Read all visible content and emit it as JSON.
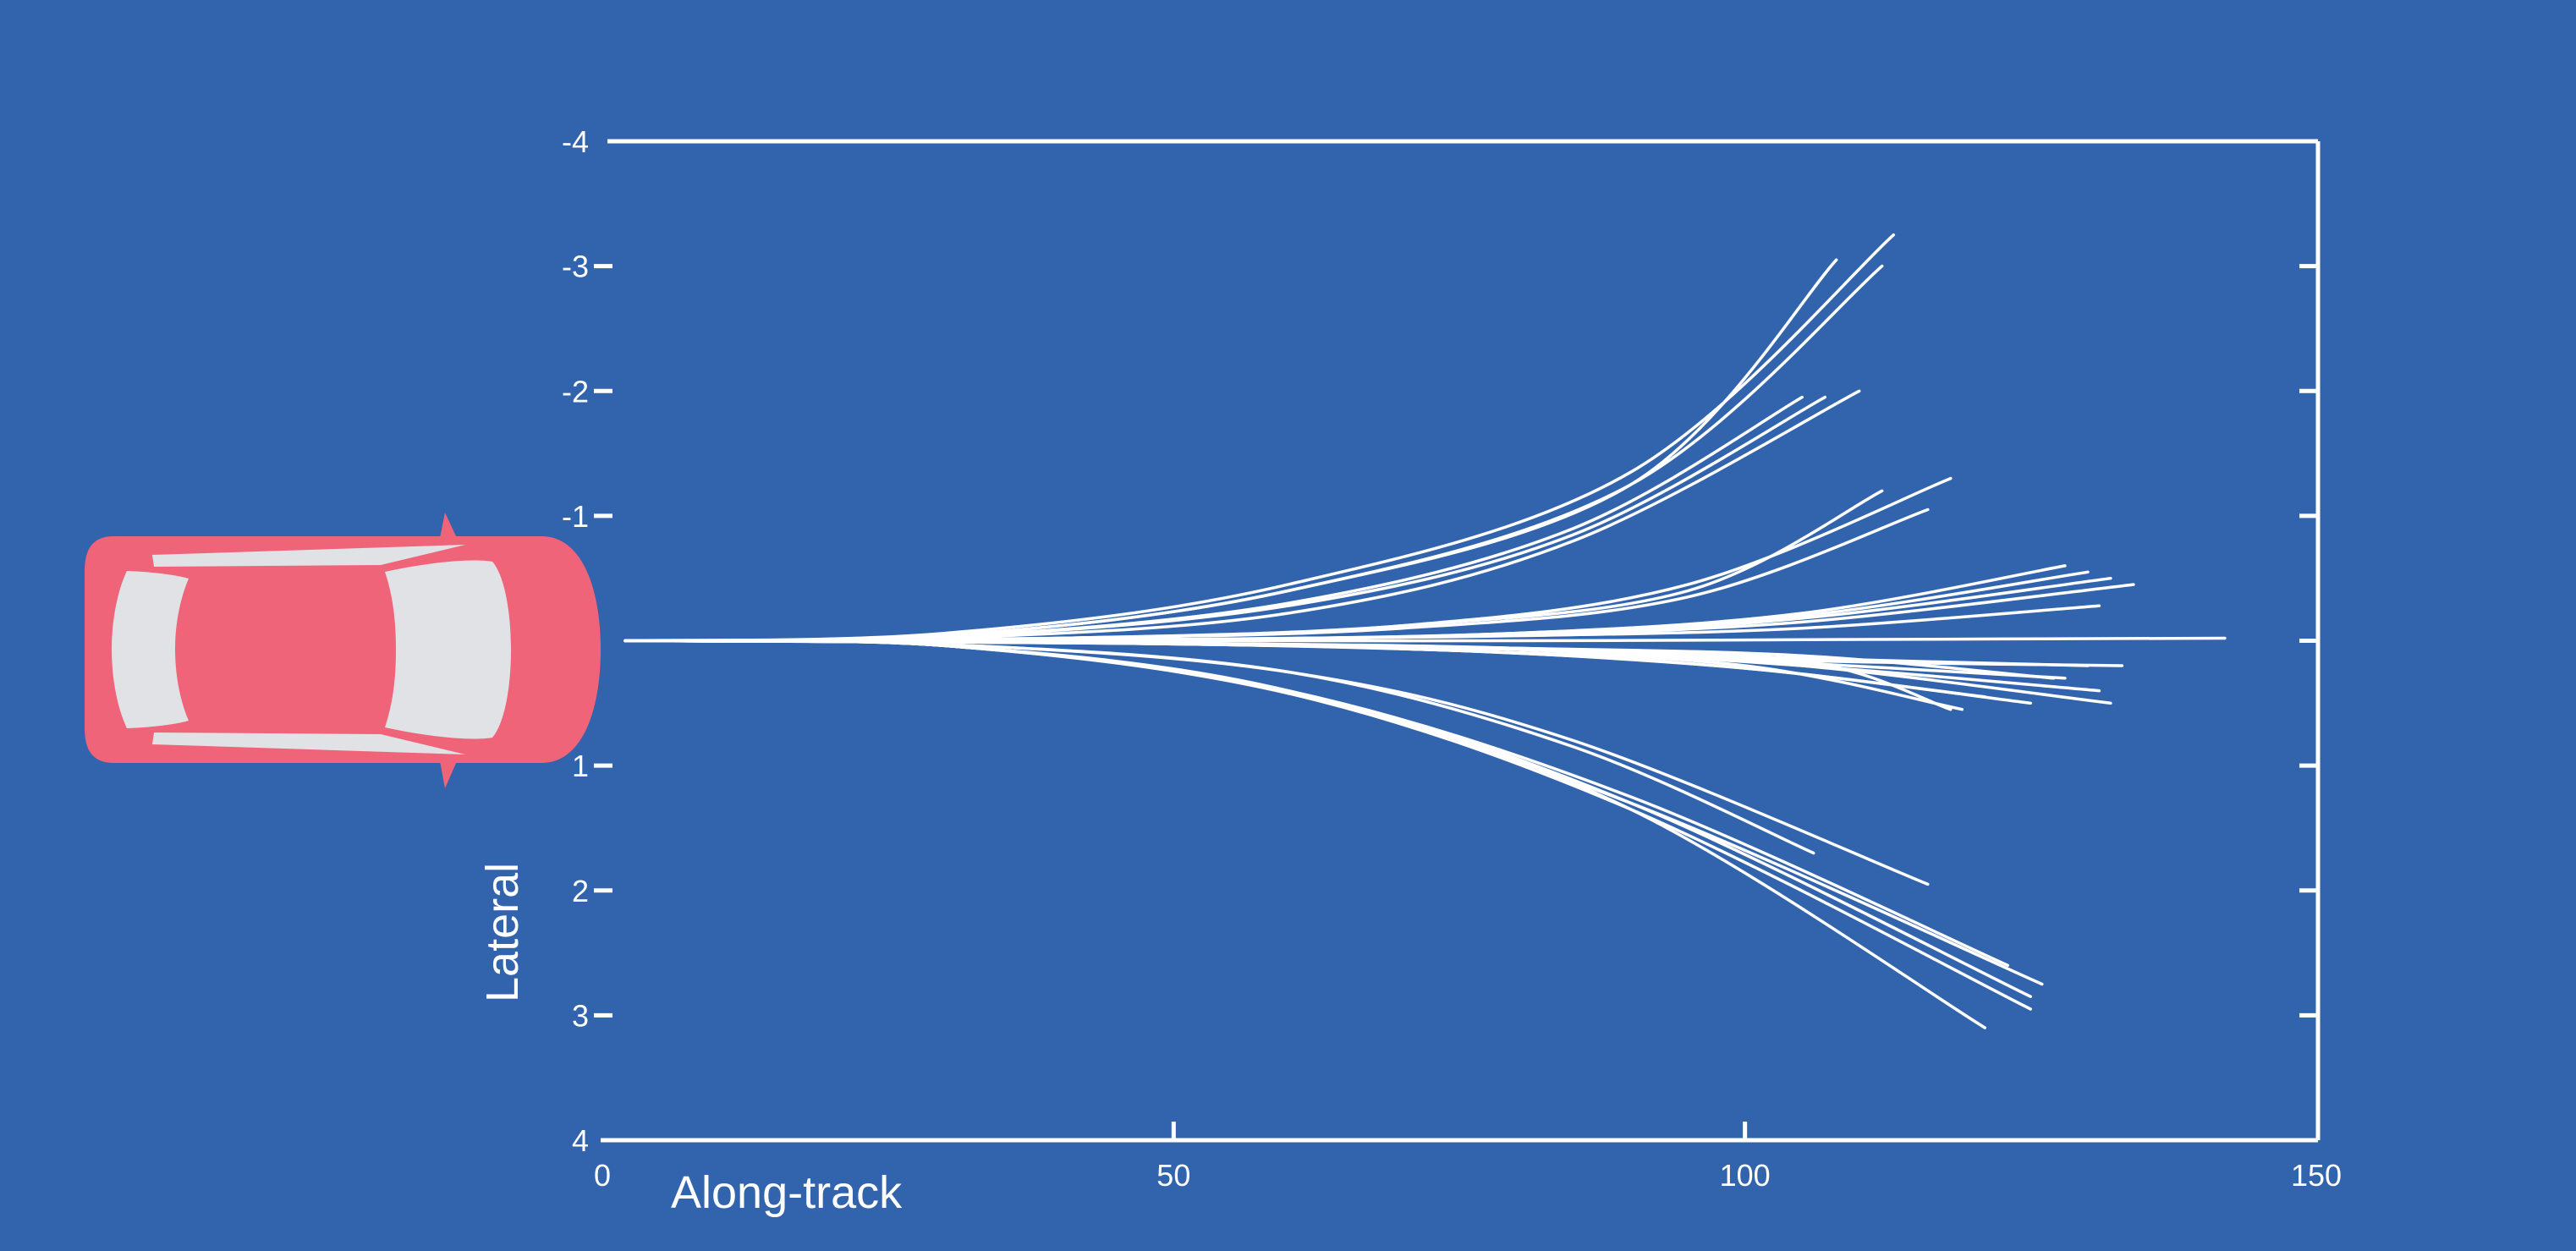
{
  "colors": {
    "background": "#3264ad",
    "foreground": "#ffffff",
    "car_body": "#f0647a",
    "car_glass": "#e1e2e6"
  },
  "vehicle": {
    "icon": "car-top-view-icon"
  },
  "chart_data": {
    "type": "line",
    "xlabel": "Along-track",
    "ylabel": "Lateral",
    "xlim": [
      0,
      150
    ],
    "ylim": [
      -4,
      4
    ],
    "y_inverted": true,
    "x_ticks": [
      "0",
      "50",
      "100",
      "150"
    ],
    "y_ticks": [
      "-4",
      "-3",
      "-2",
      "-1",
      "1",
      "2",
      "3",
      "4"
    ],
    "grid": false,
    "series": [
      {
        "x": [
          2,
          30,
          60,
          90,
          108
        ],
        "y": [
          0.0,
          -0.04,
          -0.4,
          -1.25,
          -3.05
        ]
      },
      {
        "x": [
          2,
          30,
          60,
          90,
          113
        ],
        "y": [
          0.0,
          -0.06,
          -0.45,
          -1.35,
          -3.25
        ]
      },
      {
        "x": [
          2,
          30,
          60,
          90,
          112
        ],
        "y": [
          0.0,
          -0.04,
          -0.4,
          -1.25,
          -3.0
        ]
      },
      {
        "x": [
          2,
          30,
          60,
          85,
          105
        ],
        "y": [
          0.0,
          -0.03,
          -0.3,
          -0.9,
          -1.95
        ]
      },
      {
        "x": [
          2,
          30,
          60,
          85,
          107
        ],
        "y": [
          0.0,
          -0.03,
          -0.28,
          -0.85,
          -1.95
        ]
      },
      {
        "x": [
          2,
          30,
          60,
          85,
          110
        ],
        "y": [
          0.0,
          -0.02,
          -0.22,
          -0.8,
          -2.0
        ]
      },
      {
        "x": [
          2,
          40,
          70,
          95,
          118
        ],
        "y": [
          0.0,
          -0.02,
          -0.12,
          -0.45,
          -1.3
        ]
      },
      {
        "x": [
          2,
          40,
          70,
          95,
          112
        ],
        "y": [
          0.0,
          -0.02,
          -0.12,
          -0.4,
          -1.2
        ]
      },
      {
        "x": [
          2,
          40,
          70,
          95,
          116
        ],
        "y": [
          0.0,
          -0.02,
          -0.1,
          -0.35,
          -1.05
        ]
      },
      {
        "x": [
          2,
          50,
          80,
          105,
          128
        ],
        "y": [
          0.0,
          -0.01,
          -0.06,
          -0.22,
          -0.6
        ]
      },
      {
        "x": [
          2,
          50,
          80,
          105,
          130
        ],
        "y": [
          0.0,
          -0.01,
          -0.06,
          -0.2,
          -0.55
        ]
      },
      {
        "x": [
          2,
          50,
          80,
          105,
          132
        ],
        "y": [
          0.0,
          -0.01,
          -0.05,
          -0.18,
          -0.5
        ]
      },
      {
        "x": [
          2,
          50,
          80,
          105,
          134
        ],
        "y": [
          0.0,
          -0.01,
          -0.05,
          -0.15,
          -0.45
        ]
      },
      {
        "x": [
          2,
          50,
          80,
          105,
          131
        ],
        "y": [
          0.0,
          -0.01,
          -0.04,
          -0.1,
          -0.28
        ]
      },
      {
        "x": [
          2,
          50,
          80,
          110,
          142
        ],
        "y": [
          0.0,
          0.0,
          0.0,
          -0.01,
          -0.02
        ]
      },
      {
        "x": [
          2,
          50,
          80,
          105,
          127
        ],
        "y": [
          0.0,
          0.02,
          0.06,
          0.12,
          0.3
        ]
      },
      {
        "x": [
          2,
          50,
          80,
          105,
          130
        ],
        "y": [
          0.0,
          0.02,
          0.06,
          0.14,
          0.2
        ]
      },
      {
        "x": [
          2,
          50,
          80,
          105,
          133
        ],
        "y": [
          0.0,
          0.02,
          0.07,
          0.16,
          0.2
        ]
      },
      {
        "x": [
          2,
          45,
          75,
          100,
          119
        ],
        "y": [
          0.0,
          0.02,
          0.08,
          0.2,
          0.55
        ]
      },
      {
        "x": [
          2,
          45,
          75,
          100,
          121
        ],
        "y": [
          0.0,
          0.02,
          0.08,
          0.22,
          0.45
        ]
      },
      {
        "x": [
          2,
          45,
          75,
          100,
          125
        ],
        "y": [
          0.0,
          0.02,
          0.08,
          0.22,
          0.5
        ]
      },
      {
        "x": [
          2,
          50,
          80,
          105,
          132
        ],
        "y": [
          0.0,
          0.02,
          0.07,
          0.2,
          0.5
        ]
      },
      {
        "x": [
          2,
          50,
          80,
          105,
          131
        ],
        "y": [
          0.0,
          0.02,
          0.07,
          0.2,
          0.4
        ]
      },
      {
        "x": [
          2,
          50,
          80,
          105,
          128
        ],
        "y": [
          0.0,
          0.02,
          0.07,
          0.18,
          0.3
        ]
      },
      {
        "x": [
          2,
          50,
          80,
          105,
          118
        ],
        "y": [
          0.0,
          0.02,
          0.06,
          0.16,
          0.55
        ]
      },
      {
        "x": [
          2,
          30,
          60,
          85,
          106
        ],
        "y": [
          0.0,
          0.03,
          0.25,
          0.85,
          1.7
        ]
      },
      {
        "x": [
          2,
          30,
          60,
          85,
          116
        ],
        "y": [
          0.0,
          0.03,
          0.25,
          0.8,
          1.95
        ]
      },
      {
        "x": [
          2,
          30,
          60,
          90,
          123
        ],
        "y": [
          0.0,
          0.04,
          0.4,
          1.25,
          2.6
        ]
      },
      {
        "x": [
          2,
          30,
          60,
          90,
          125
        ],
        "y": [
          0.0,
          0.04,
          0.4,
          1.3,
          2.85
        ]
      },
      {
        "x": [
          2,
          30,
          60,
          90,
          126
        ],
        "y": [
          0.0,
          0.04,
          0.42,
          1.3,
          2.75
        ]
      },
      {
        "x": [
          2,
          30,
          60,
          90,
          125
        ],
        "y": [
          0.0,
          0.04,
          0.42,
          1.35,
          2.95
        ]
      },
      {
        "x": [
          2,
          30,
          60,
          90,
          121
        ],
        "y": [
          0.0,
          0.04,
          0.4,
          1.35,
          3.1
        ]
      }
    ]
  }
}
